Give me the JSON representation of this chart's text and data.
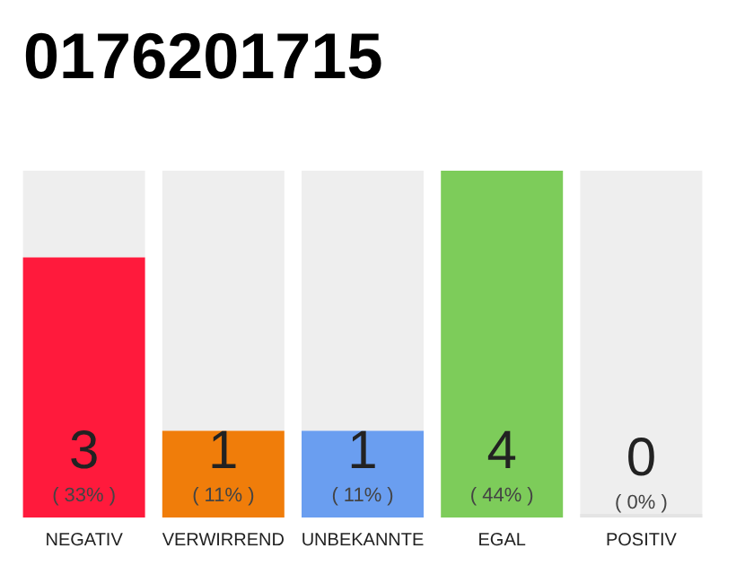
{
  "chart_data": {
    "type": "bar",
    "title": "0176201715",
    "stacked": true,
    "categories": [
      "NEGATIV",
      "VERWIRREND",
      "UNBEKANNTE",
      "EGAL",
      "POSITIV"
    ],
    "series": [
      {
        "values": [
          3,
          1,
          1,
          4,
          0
        ],
        "colors": [
          "#ff1a3c",
          "#f07d0a",
          "#6a9ef0",
          "#7dcc5a",
          "#e4e4e4"
        ],
        "value_labels": [
          "3\n( 33% )",
          "1\n( 11% )",
          "1\n( 11% )",
          "4\n( 44% )",
          "0\n( 0% )"
        ]
      },
      {
        "values": [
          1,
          3,
          3,
          0,
          4
        ],
        "color": "#eeeeee"
      }
    ]
  }
}
